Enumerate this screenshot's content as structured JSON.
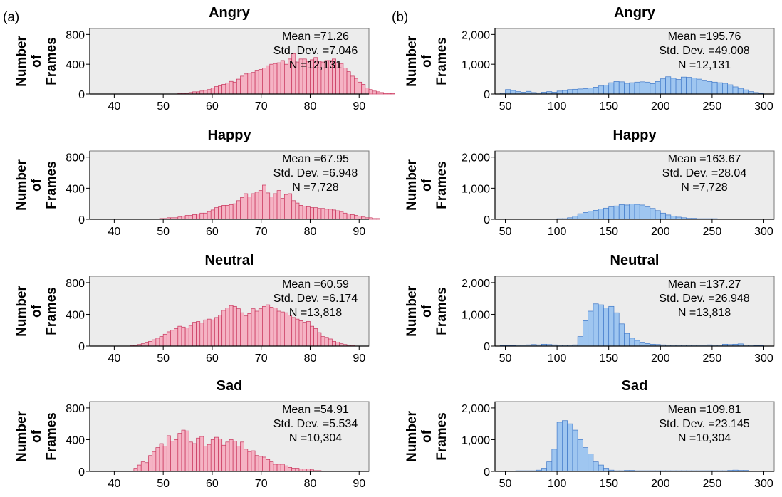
{
  "panel_labels": [
    "(a)",
    "(b)"
  ],
  "ylabel_lines": [
    "Number",
    "of",
    "Frames"
  ],
  "colors": {
    "pink_fill": "#f5b3c4",
    "pink_edge": "#c8325a",
    "blue_fill": "#9fc6f0",
    "blue_edge": "#3f78c8",
    "plot_bg": "#ececec"
  },
  "chart_data": [
    {
      "type": "bar",
      "panel": "(a)",
      "title": "Angry",
      "xlabel": "",
      "ylabel": "Number of Frames",
      "xlim": [
        35,
        92
      ],
      "ylim": [
        0,
        880
      ],
      "xticks": [
        40,
        50,
        60,
        70,
        80,
        90
      ],
      "yticks": [
        0,
        400,
        800
      ],
      "ytick_labels": [
        "0",
        "400",
        "800"
      ],
      "bin_start": 50,
      "bin_width": 0.75,
      "values": [
        0,
        0,
        0,
        0,
        10,
        10,
        10,
        20,
        30,
        30,
        40,
        50,
        60,
        80,
        100,
        110,
        130,
        150,
        170,
        160,
        200,
        240,
        270,
        280,
        290,
        310,
        330,
        350,
        380,
        400,
        410,
        420,
        450,
        400,
        470,
        540,
        430,
        470,
        470,
        440,
        460,
        490,
        440,
        430,
        450,
        450,
        470,
        420,
        410,
        350,
        300,
        240,
        210,
        160,
        130,
        80,
        60,
        40,
        30,
        20,
        10,
        10,
        10,
        0
      ],
      "mean_label": "Mean =71.26",
      "sd_label": "Std. Dev. =7.046",
      "n_label": "N =12,131"
    },
    {
      "type": "bar",
      "panel": "(b)",
      "title": "Angry",
      "xlabel": "",
      "ylabel": "Number of Frames",
      "xlim": [
        40,
        310
      ],
      "ylim": [
        0,
        2200
      ],
      "xticks": [
        50,
        100,
        150,
        200,
        250,
        300
      ],
      "yticks": [
        0,
        1000,
        2000
      ],
      "ytick_labels": [
        "0",
        "1,000",
        "2,000"
      ],
      "bin_start": 45,
      "bin_width": 5,
      "values": [
        30,
        150,
        120,
        80,
        60,
        90,
        50,
        40,
        60,
        80,
        60,
        100,
        120,
        150,
        160,
        170,
        180,
        200,
        230,
        270,
        300,
        380,
        420,
        410,
        360,
        380,
        400,
        410,
        400,
        350,
        420,
        510,
        580,
        530,
        490,
        570,
        560,
        540,
        500,
        440,
        420,
        400,
        380,
        360,
        310,
        240,
        190,
        140,
        80,
        50,
        20
      ],
      "mean_label": "Mean =195.76",
      "sd_label": "Std. Dev. =49.008",
      "n_label": "N =12,131"
    },
    {
      "type": "bar",
      "panel": "(a)",
      "title": "Happy",
      "xlabel": "",
      "ylabel": "Number of Frames",
      "xlim": [
        35,
        92
      ],
      "ylim": [
        0,
        880
      ],
      "xticks": [
        40,
        50,
        60,
        70,
        80,
        90
      ],
      "yticks": [
        0,
        400,
        800
      ],
      "ytick_labels": [
        "0",
        "400",
        "800"
      ],
      "bin_start": 49.25,
      "bin_width": 0.75,
      "values": [
        10,
        10,
        20,
        20,
        20,
        30,
        40,
        50,
        50,
        60,
        70,
        80,
        80,
        100,
        120,
        150,
        160,
        180,
        180,
        190,
        200,
        240,
        280,
        330,
        290,
        330,
        350,
        370,
        440,
        340,
        290,
        330,
        370,
        270,
        320,
        330,
        240,
        210,
        180,
        170,
        160,
        150,
        150,
        140,
        140,
        130,
        130,
        120,
        110,
        100,
        80,
        70,
        60,
        50,
        40,
        30,
        20,
        20,
        10,
        10
      ],
      "mean_label": "Mean =67.95",
      "sd_label": "Std. Dev. =6.948",
      "n_label": "N =7,728"
    },
    {
      "type": "bar",
      "panel": "(b)",
      "title": "Happy",
      "xlabel": "",
      "ylabel": "Number of Frames",
      "xlim": [
        40,
        310
      ],
      "ylim": [
        0,
        2200
      ],
      "xticks": [
        50,
        100,
        150,
        200,
        250,
        300
      ],
      "yticks": [
        0,
        1000,
        2000
      ],
      "ytick_labels": [
        "0",
        "1,000",
        "2,000"
      ],
      "bin_start": 55,
      "bin_width": 5,
      "values": [
        10,
        10,
        10,
        10,
        10,
        10,
        10,
        10,
        10,
        20,
        20,
        50,
        100,
        180,
        220,
        260,
        290,
        330,
        360,
        400,
        430,
        470,
        460,
        490,
        480,
        460,
        400,
        350,
        280,
        200,
        140,
        100,
        70,
        50,
        30,
        30,
        20,
        20,
        20,
        20,
        10
      ],
      "mean_label": "Mean =163.67",
      "sd_label": "Std. Dev. =28.04",
      "n_label": "N =7,728"
    },
    {
      "type": "bar",
      "panel": "(a)",
      "title": "Neutral",
      "xlabel": "",
      "ylabel": "Number of Frames",
      "xlim": [
        35,
        92
      ],
      "ylim": [
        0,
        880
      ],
      "xticks": [
        40,
        50,
        60,
        70,
        80,
        90
      ],
      "yticks": [
        0,
        400,
        800
      ],
      "ytick_labels": [
        "0",
        "400",
        "800"
      ],
      "bin_start": 43.25,
      "bin_width": 0.75,
      "values": [
        10,
        10,
        20,
        30,
        40,
        60,
        80,
        100,
        120,
        150,
        180,
        200,
        220,
        250,
        240,
        230,
        260,
        300,
        310,
        290,
        330,
        340,
        330,
        360,
        390,
        450,
        480,
        510,
        500,
        470,
        420,
        380,
        410,
        470,
        440,
        470,
        500,
        520,
        490,
        480,
        440,
        430,
        420,
        390,
        360,
        340,
        320,
        300,
        310,
        250,
        220,
        170,
        120,
        110,
        90,
        60,
        50,
        30,
        20,
        10,
        10
      ],
      "mean_label": "Mean =60.59",
      "sd_label": "Std. Dev. =6.174",
      "n_label": "N =13,818"
    },
    {
      "type": "bar",
      "panel": "(b)",
      "title": "Neutral",
      "xlabel": "",
      "ylabel": "Number of Frames",
      "xlim": [
        40,
        310
      ],
      "ylim": [
        0,
        2200
      ],
      "xticks": [
        50,
        100,
        150,
        200,
        250,
        300
      ],
      "yticks": [
        0,
        1000,
        2000
      ],
      "ytick_labels": [
        "0",
        "1,000",
        "2,000"
      ],
      "bin_start": 45,
      "bin_width": 5,
      "values": [
        20,
        20,
        20,
        30,
        30,
        40,
        50,
        40,
        60,
        50,
        40,
        30,
        30,
        30,
        40,
        300,
        800,
        1100,
        1330,
        1300,
        1200,
        1250,
        1050,
        700,
        400,
        250,
        180,
        100,
        80,
        60,
        50,
        40,
        30,
        30,
        30,
        30,
        30,
        30,
        30,
        30,
        40,
        30,
        30,
        60,
        50,
        60,
        70,
        30,
        30,
        20,
        20
      ],
      "mean_label": "Mean =137.27",
      "sd_label": "Std. Dev. =26.948",
      "n_label": "N =13,818"
    },
    {
      "type": "bar",
      "panel": "(a)",
      "title": "Sad",
      "xlabel": "",
      "ylabel": "Number of Frames",
      "xlim": [
        35,
        92
      ],
      "ylim": [
        0,
        880
      ],
      "xticks": [
        40,
        50,
        60,
        70,
        80,
        90
      ],
      "yticks": [
        0,
        400,
        800
      ],
      "ytick_labels": [
        "0",
        "400",
        "800"
      ],
      "bin_start": 44,
      "bin_width": 0.75,
      "values": [
        40,
        80,
        120,
        110,
        200,
        250,
        300,
        350,
        320,
        450,
        380,
        400,
        480,
        520,
        510,
        370,
        350,
        420,
        440,
        320,
        340,
        400,
        430,
        410,
        330,
        370,
        400,
        380,
        320,
        370,
        280,
        250,
        260,
        200,
        190,
        180,
        150,
        120,
        90,
        90,
        90,
        70,
        50,
        40,
        40,
        30,
        30,
        30,
        20,
        10,
        10
      ],
      "mean_label": "Mean =54.91",
      "sd_label": "Std. Dev. =5.534",
      "n_label": "N =10,304"
    },
    {
      "type": "bar",
      "panel": "(b)",
      "title": "Sad",
      "xlabel": "",
      "ylabel": "Number of Frames",
      "xlim": [
        40,
        310
      ],
      "ylim": [
        0,
        2200
      ],
      "xticks": [
        50,
        100,
        150,
        200,
        250,
        300
      ],
      "yticks": [
        0,
        1000,
        2000
      ],
      "ytick_labels": [
        "0",
        "1,000",
        "2,000"
      ],
      "bin_start": 60,
      "bin_width": 5,
      "values": [
        20,
        20,
        20,
        20,
        40,
        100,
        300,
        700,
        1550,
        1600,
        1500,
        1300,
        1000,
        750,
        550,
        300,
        200,
        100,
        40,
        20,
        20,
        30,
        30,
        20,
        20,
        20,
        20,
        20,
        20,
        20,
        20,
        20,
        20,
        20,
        20,
        20,
        20,
        20,
        20,
        20,
        20,
        30,
        40,
        30,
        30
      ],
      "mean_label": "Mean =109.81",
      "sd_label": "Std. Dev. =23.145",
      "n_label": "N =10,304"
    }
  ]
}
